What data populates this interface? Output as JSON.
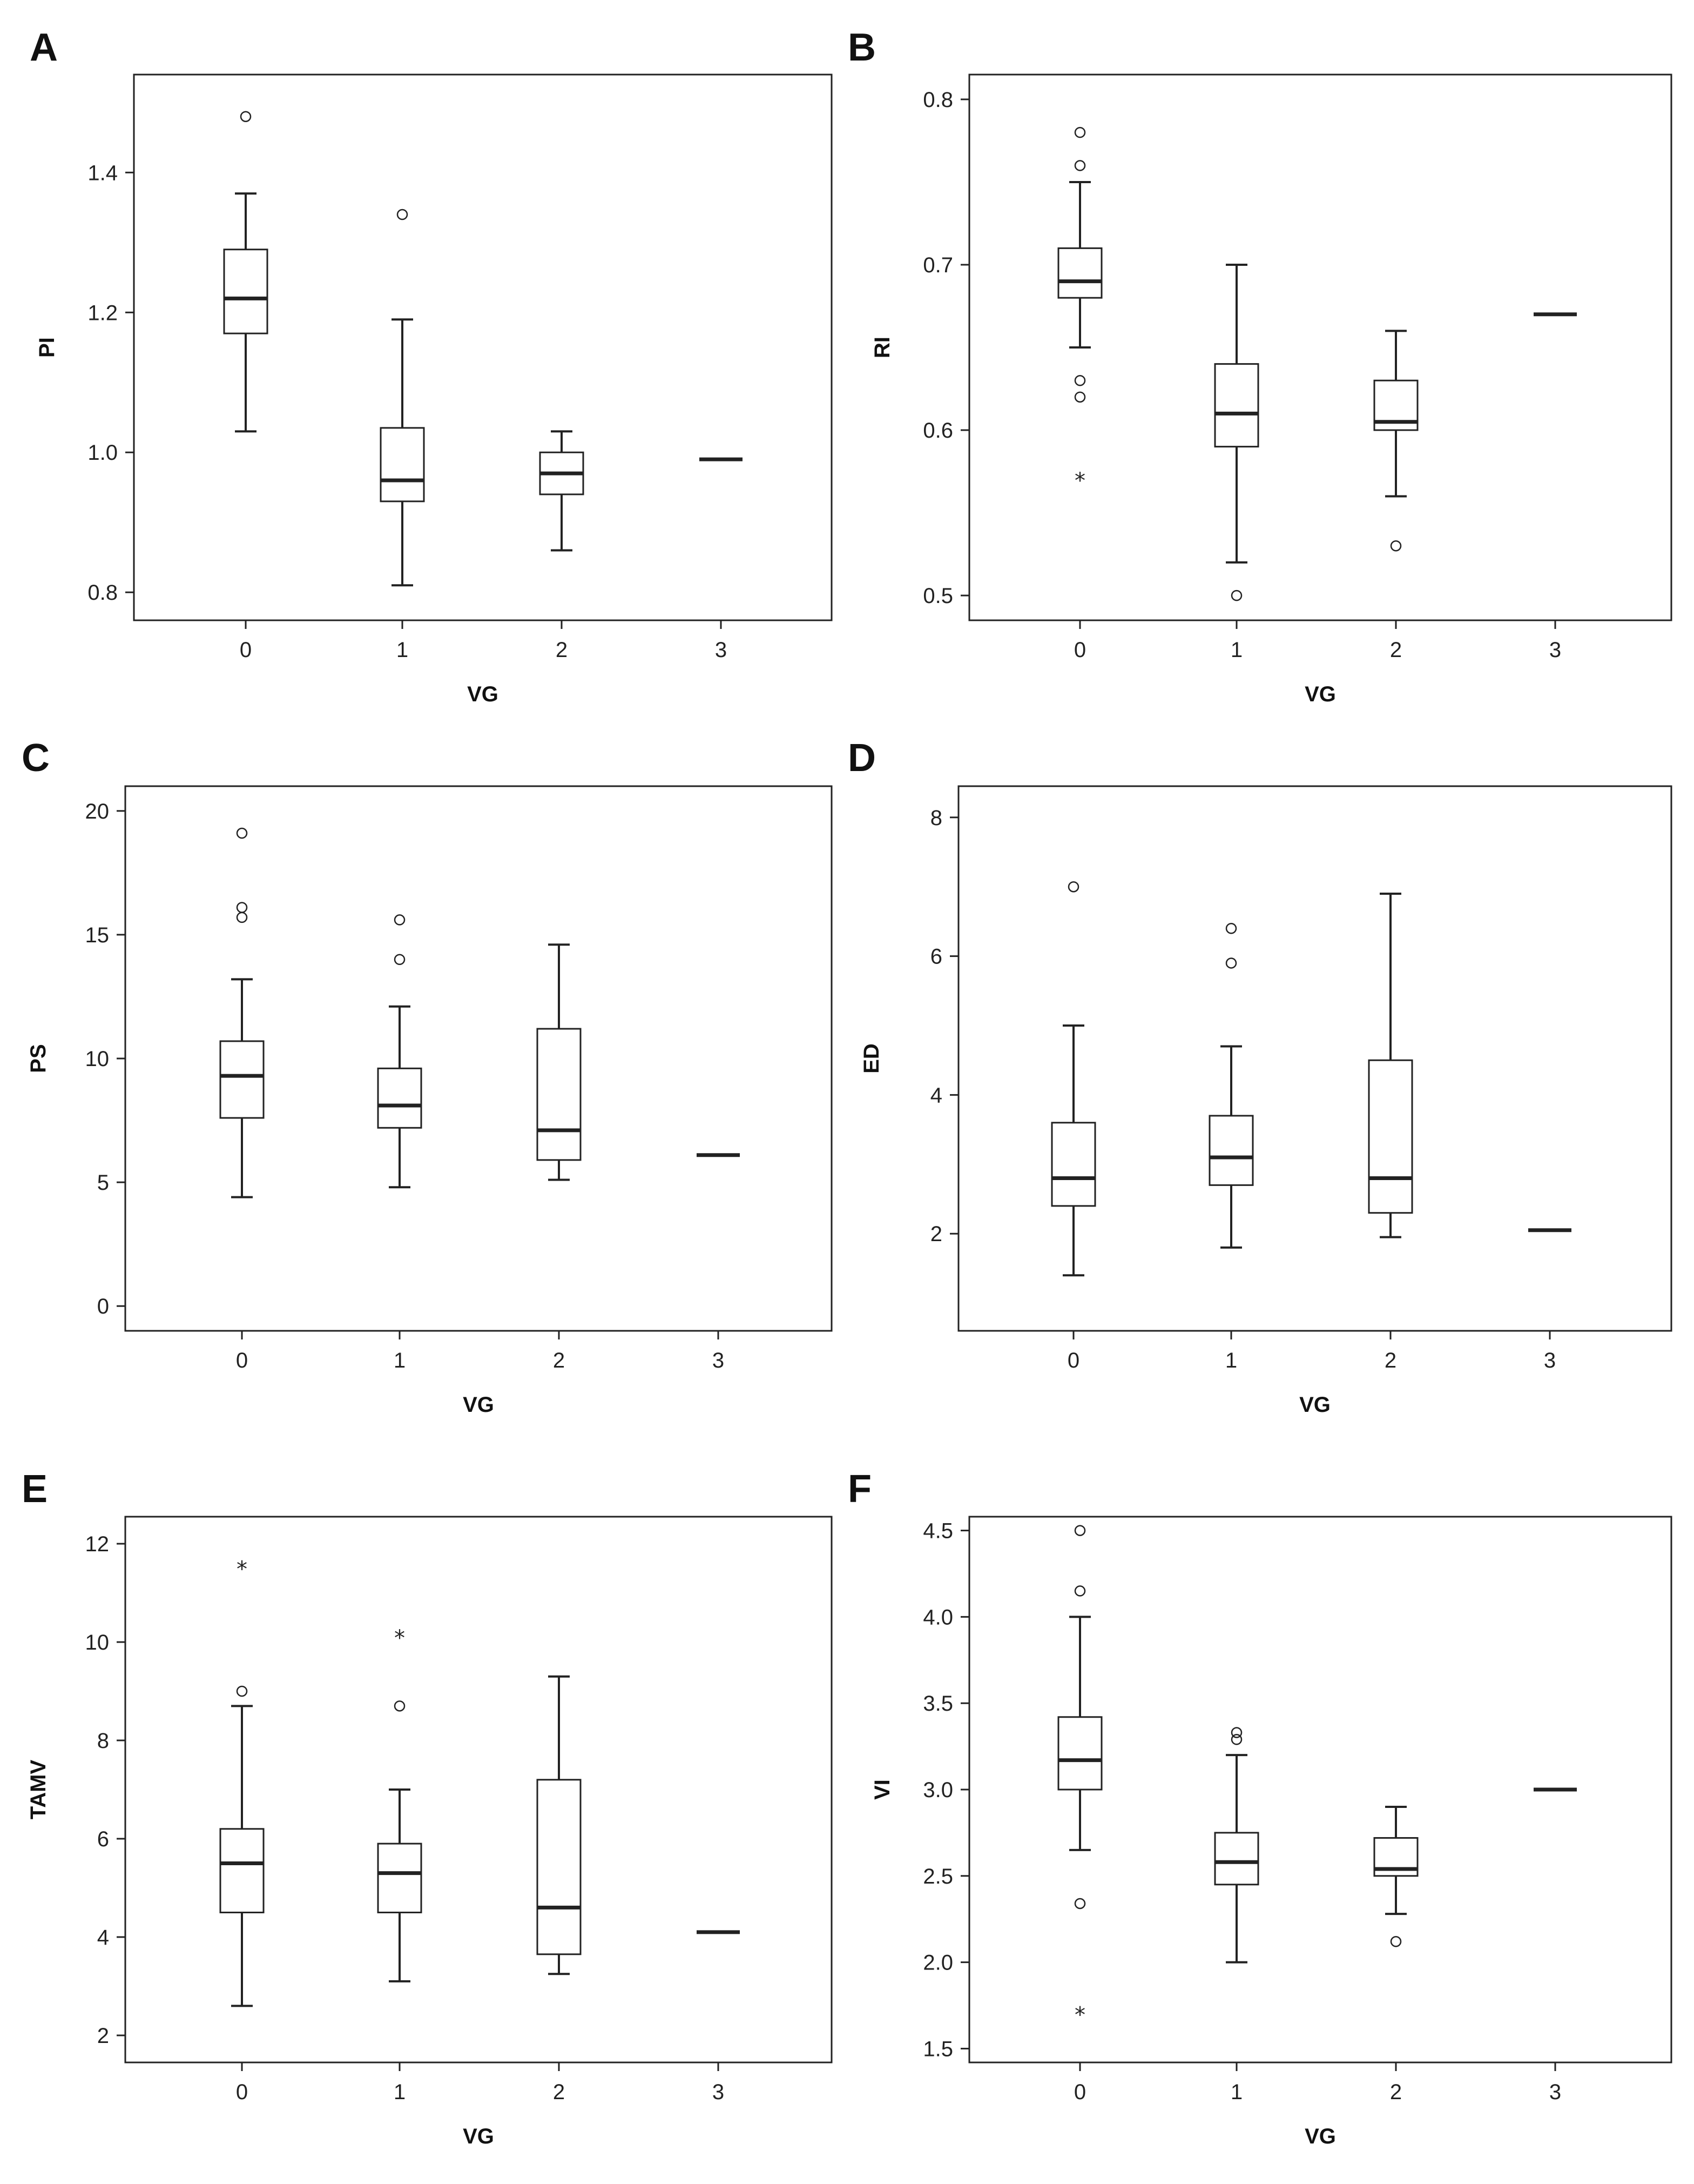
{
  "figure": {
    "ink_color": "#222222",
    "box_fill": "#ffffff",
    "background": "#ffffff"
  },
  "chart_data": [
    {
      "panel": "A",
      "type": "boxplot",
      "xlabel": "VG",
      "ylabel": "PI",
      "categories": [
        "0",
        "1",
        "2",
        "3"
      ],
      "ylim": [
        0.76,
        1.54
      ],
      "yticks": [
        0.8,
        1.0,
        1.2,
        1.4
      ],
      "ytick_labels": [
        "0.8",
        "1.0",
        "1.2",
        "1.4"
      ],
      "boxes": [
        {
          "category": "0",
          "whisker_low": 1.03,
          "q1": 1.17,
          "median": 1.22,
          "q3": 1.29,
          "whisker_high": 1.37,
          "outliers": [
            1.48
          ],
          "extremes": []
        },
        {
          "category": "1",
          "whisker_low": 0.81,
          "q1": 0.93,
          "median": 0.96,
          "q3": 1.035,
          "whisker_high": 1.19,
          "outliers": [
            1.34
          ],
          "extremes": []
        },
        {
          "category": "2",
          "whisker_low": 0.86,
          "q1": 0.94,
          "median": 0.97,
          "q3": 1.0,
          "whisker_high": 1.03,
          "outliers": [],
          "extremes": []
        },
        {
          "category": "3",
          "median": 0.99,
          "single_line": true,
          "outliers": [],
          "extremes": []
        }
      ]
    },
    {
      "panel": "B",
      "type": "boxplot",
      "xlabel": "VG",
      "ylabel": "RI",
      "categories": [
        "0",
        "1",
        "2",
        "3"
      ],
      "ylim": [
        0.485,
        0.815
      ],
      "yticks": [
        0.5,
        0.6,
        0.7,
        0.8
      ],
      "ytick_labels": [
        "0.5",
        "0.6",
        "0.7",
        "0.8"
      ],
      "boxes": [
        {
          "category": "0",
          "whisker_low": 0.65,
          "q1": 0.68,
          "median": 0.69,
          "q3": 0.71,
          "whisker_high": 0.75,
          "outliers": [
            0.78,
            0.76,
            0.63,
            0.62
          ],
          "extremes": [
            0.57
          ]
        },
        {
          "category": "1",
          "whisker_low": 0.52,
          "q1": 0.59,
          "median": 0.61,
          "q3": 0.64,
          "whisker_high": 0.7,
          "outliers": [
            0.5
          ],
          "extremes": []
        },
        {
          "category": "2",
          "whisker_low": 0.56,
          "q1": 0.6,
          "median": 0.605,
          "q3": 0.63,
          "whisker_high": 0.66,
          "outliers": [
            0.53
          ],
          "extremes": []
        },
        {
          "category": "3",
          "median": 0.67,
          "single_line": true,
          "outliers": [],
          "extremes": []
        }
      ]
    },
    {
      "panel": "C",
      "type": "boxplot",
      "xlabel": "VG",
      "ylabel": "PS",
      "categories": [
        "0",
        "1",
        "2",
        "3"
      ],
      "ylim": [
        -1.0,
        21.0
      ],
      "yticks": [
        0,
        5,
        10,
        15,
        20
      ],
      "ytick_labels": [
        "0",
        "5",
        "10",
        "15",
        "20"
      ],
      "boxes": [
        {
          "category": "0",
          "whisker_low": 4.4,
          "q1": 7.6,
          "median": 9.3,
          "q3": 10.7,
          "whisker_high": 13.2,
          "outliers": [
            19.1,
            16.1,
            15.7
          ],
          "extremes": []
        },
        {
          "category": "1",
          "whisker_low": 4.8,
          "q1": 7.2,
          "median": 8.1,
          "q3": 9.6,
          "whisker_high": 12.1,
          "outliers": [
            15.6,
            14.0
          ],
          "extremes": []
        },
        {
          "category": "2",
          "whisker_low": 5.1,
          "q1": 5.9,
          "median": 7.1,
          "q3": 11.2,
          "whisker_high": 14.6,
          "outliers": [],
          "extremes": []
        },
        {
          "category": "3",
          "median": 6.1,
          "single_line": true,
          "outliers": [],
          "extremes": []
        }
      ]
    },
    {
      "panel": "D",
      "type": "boxplot",
      "xlabel": "VG",
      "ylabel": "ED",
      "categories": [
        "0",
        "1",
        "2",
        "3"
      ],
      "ylim": [
        0.6,
        8.45
      ],
      "yticks": [
        2,
        4,
        6,
        8
      ],
      "ytick_labels": [
        "2",
        "4",
        "6",
        "8"
      ],
      "boxes": [
        {
          "category": "0",
          "whisker_low": 1.4,
          "q1": 2.4,
          "median": 2.8,
          "q3": 3.6,
          "whisker_high": 5.0,
          "outliers": [
            7.0
          ],
          "extremes": []
        },
        {
          "category": "1",
          "whisker_low": 1.8,
          "q1": 2.7,
          "median": 3.1,
          "q3": 3.7,
          "whisker_high": 4.7,
          "outliers": [
            6.4,
            5.9
          ],
          "extremes": []
        },
        {
          "category": "2",
          "whisker_low": 1.95,
          "q1": 2.3,
          "median": 2.8,
          "q3": 4.5,
          "whisker_high": 6.9,
          "outliers": [],
          "extremes": []
        },
        {
          "category": "3",
          "median": 2.05,
          "single_line": true,
          "outliers": [],
          "extremes": []
        }
      ]
    },
    {
      "panel": "E",
      "type": "boxplot",
      "xlabel": "VG",
      "ylabel": "TAMV",
      "categories": [
        "0",
        "1",
        "2",
        "3"
      ],
      "ylim": [
        1.45,
        12.55
      ],
      "yticks": [
        2,
        4,
        6,
        8,
        10,
        12
      ],
      "ytick_labels": [
        "2",
        "4",
        "6",
        "8",
        "10",
        "12"
      ],
      "boxes": [
        {
          "category": "0",
          "whisker_low": 2.6,
          "q1": 4.5,
          "median": 5.5,
          "q3": 6.2,
          "whisker_high": 8.7,
          "outliers": [
            9.0
          ],
          "extremes": [
            11.5
          ]
        },
        {
          "category": "1",
          "whisker_low": 3.1,
          "q1": 4.5,
          "median": 5.3,
          "q3": 5.9,
          "whisker_high": 7.0,
          "outliers": [
            8.7
          ],
          "extremes": [
            10.1
          ]
        },
        {
          "category": "2",
          "whisker_low": 3.25,
          "q1": 3.65,
          "median": 4.6,
          "q3": 7.2,
          "whisker_high": 9.3,
          "outliers": [],
          "extremes": []
        },
        {
          "category": "3",
          "median": 4.1,
          "single_line": true,
          "outliers": [],
          "extremes": []
        }
      ]
    },
    {
      "panel": "F",
      "type": "boxplot",
      "xlabel": "VG",
      "ylabel": "VI",
      "categories": [
        "0",
        "1",
        "2",
        "3"
      ],
      "ylim": [
        1.42,
        4.58
      ],
      "yticks": [
        1.5,
        2.0,
        2.5,
        3.0,
        3.5,
        4.0,
        4.5
      ],
      "ytick_labels": [
        "1.5",
        "2.0",
        "2.5",
        "3.0",
        "3.5",
        "4.0",
        "4.5"
      ],
      "boxes": [
        {
          "category": "0",
          "whisker_low": 2.65,
          "q1": 3.0,
          "median": 3.17,
          "q3": 3.42,
          "whisker_high": 4.0,
          "outliers": [
            4.5,
            4.15,
            2.34
          ],
          "extremes": [
            1.7
          ]
        },
        {
          "category": "1",
          "whisker_low": 2.0,
          "q1": 2.45,
          "median": 2.58,
          "q3": 2.75,
          "whisker_high": 3.2,
          "outliers": [
            3.33,
            3.29
          ],
          "extremes": []
        },
        {
          "category": "2",
          "whisker_low": 2.28,
          "q1": 2.5,
          "median": 2.54,
          "q3": 2.72,
          "whisker_high": 2.9,
          "outliers": [
            2.12
          ],
          "extremes": []
        },
        {
          "category": "3",
          "median": 3.0,
          "single_line": true,
          "outliers": [],
          "extremes": []
        }
      ]
    }
  ]
}
